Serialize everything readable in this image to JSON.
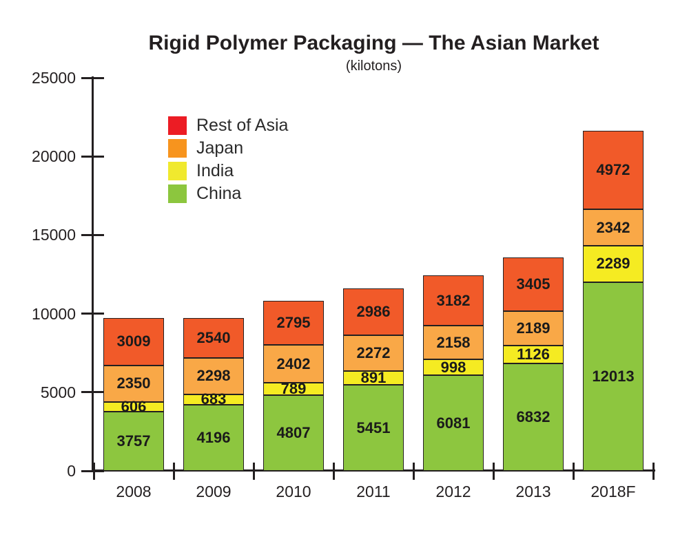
{
  "title": "Rigid Polymer Packaging — The Asian Market",
  "subtitle": "(kilotons)",
  "chart_data": {
    "type": "bar",
    "stacked": true,
    "title": "Rigid Polymer Packaging — The Asian Market",
    "subtitle": "(kilotons)",
    "unit": "kilotons",
    "categories": [
      "2008",
      "2009",
      "2010",
      "2011",
      "2012",
      "2013",
      "2018F"
    ],
    "series": [
      {
        "name": "China",
        "color": "#8DC63F",
        "legend_color": "#8CC63E",
        "values": [
          3757,
          4196,
          4807,
          5451,
          6081,
          6832,
          12013
        ]
      },
      {
        "name": "India",
        "color": "#F5EB22",
        "legend_color": "#F0E92E",
        "values": [
          606,
          683,
          789,
          891,
          998,
          1126,
          2289
        ]
      },
      {
        "name": "Japan",
        "color": "#F9A847",
        "legend_color": "#F7941E",
        "values": [
          2350,
          2298,
          2402,
          2272,
          2158,
          2189,
          2342
        ]
      },
      {
        "name": "Rest of Asia",
        "color": "#F15A29",
        "legend_color": "#EC1C24",
        "values": [
          3009,
          2540,
          2795,
          2986,
          3182,
          3405,
          4972
        ]
      }
    ],
    "totals": [
      9722,
      9717,
      10793,
      11600,
      12419,
      13552,
      21616
    ],
    "ylim": [
      0,
      25000
    ],
    "yticks": [
      0,
      5000,
      10000,
      15000,
      20000,
      25000
    ],
    "xlabel": "",
    "ylabel": "",
    "grid": false,
    "legend_position": "top-left-inside",
    "legend_order": [
      "Rest of Asia",
      "Japan",
      "India",
      "China"
    ],
    "text_color": "#231f20",
    "axis_color": "#231f20"
  }
}
